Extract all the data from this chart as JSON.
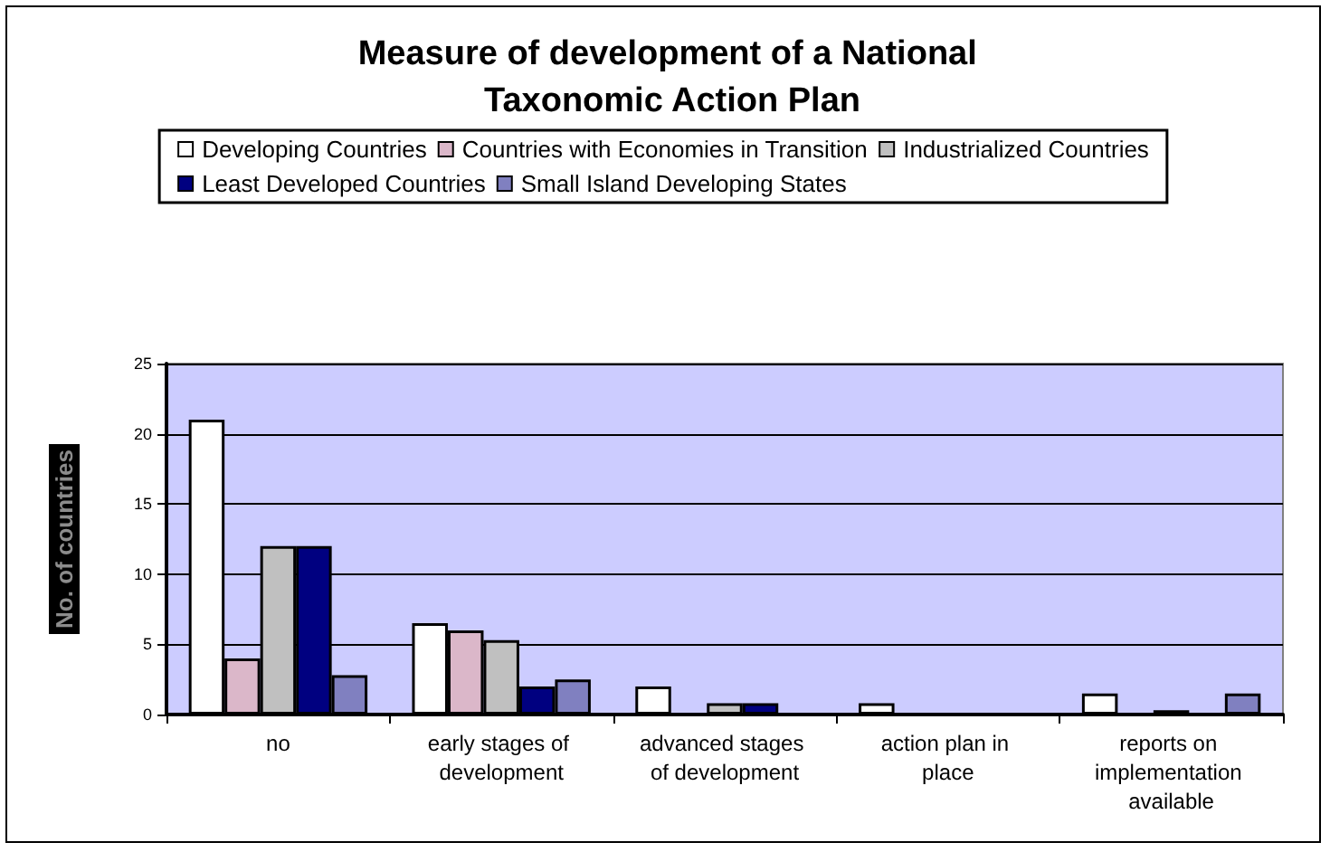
{
  "chart_data": {
    "type": "bar",
    "title": "Measure of development of a National Taxonomic Action Plan",
    "ylabel": "No. of countries",
    "categories": [
      "no",
      "early stages of development",
      "advanced stages of development",
      "action plan in place",
      "reports on implementation available"
    ],
    "series": [
      {
        "name": "Developing Countries",
        "color": "#ffffff",
        "values": [
          21,
          6.5,
          2,
          0.8,
          1.5
        ]
      },
      {
        "name": "Countries with Economies in Transition",
        "color": "#dbb7c9",
        "values": [
          4,
          6,
          null,
          null,
          null
        ]
      },
      {
        "name": "Industrialized Countries",
        "color": "#c0c0c0",
        "values": [
          12,
          5.3,
          0.8,
          null,
          0.3
        ]
      },
      {
        "name": "Least Developed Countries",
        "color": "#000080",
        "values": [
          12,
          2,
          0.8,
          null,
          null
        ]
      },
      {
        "name": "Small Island Developing States",
        "color": "#8080c0",
        "values": [
          2.8,
          2.5,
          null,
          null,
          1.5
        ]
      }
    ],
    "ylim": [
      0,
      25
    ],
    "yticks": [
      0,
      5,
      10,
      15,
      20,
      25
    ],
    "grid": "y",
    "legend": "top"
  }
}
